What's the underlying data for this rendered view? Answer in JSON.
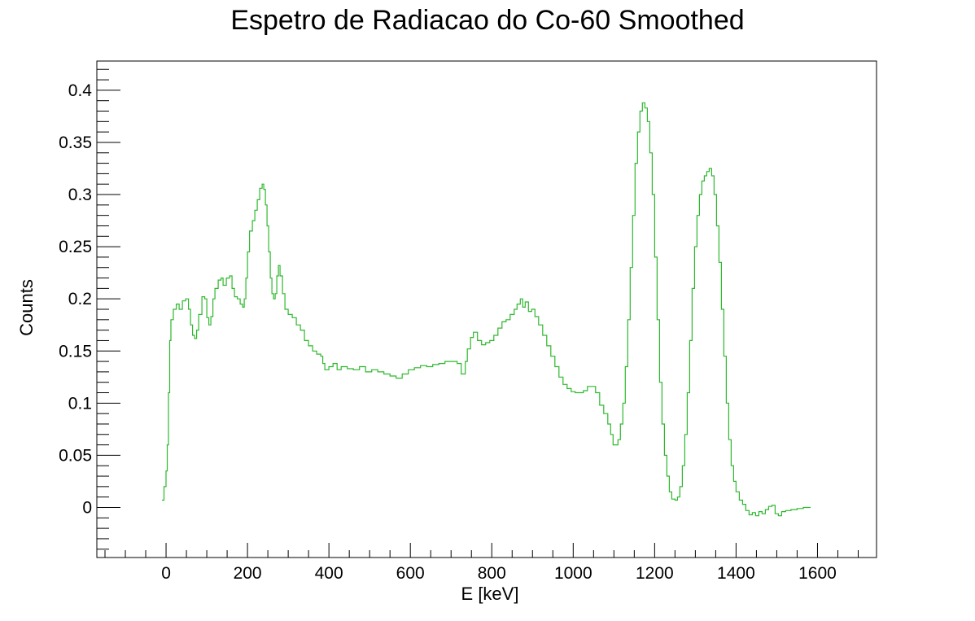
{
  "chart_data": {
    "type": "line",
    "title": "Espetro de Radiacao do Co-60 Smoothed",
    "xlabel": "E [keV]",
    "ylabel": "Counts",
    "xlim": [
      -170,
      1745
    ],
    "ylim": [
      -0.048,
      0.428
    ],
    "xticks": [
      0,
      200,
      400,
      600,
      800,
      1000,
      1200,
      1400,
      1600
    ],
    "xtick_labels": [
      "0",
      "200",
      "400",
      "600",
      "800",
      "1000",
      "1200",
      "1400",
      "1600"
    ],
    "yticks": [
      0,
      0.05,
      0.1,
      0.15,
      0.2,
      0.25,
      0.3,
      0.35,
      0.4
    ],
    "ytick_labels": [
      "0",
      "0.05",
      "0.1",
      "0.15",
      "0.2",
      "0.25",
      "0.3",
      "0.35",
      "0.4"
    ],
    "grid": false,
    "series": [
      {
        "color": "#2db82d",
        "points": [
          [
            -10,
            0.007
          ],
          [
            -5,
            0.02
          ],
          [
            0,
            0.035
          ],
          [
            3,
            0.06
          ],
          [
            6,
            0.11
          ],
          [
            9,
            0.16
          ],
          [
            12,
            0.18
          ],
          [
            18,
            0.19
          ],
          [
            25,
            0.195
          ],
          [
            32,
            0.19
          ],
          [
            40,
            0.198
          ],
          [
            48,
            0.2
          ],
          [
            55,
            0.19
          ],
          [
            60,
            0.175
          ],
          [
            65,
            0.165
          ],
          [
            70,
            0.162
          ],
          [
            75,
            0.17
          ],
          [
            80,
            0.185
          ],
          [
            88,
            0.202
          ],
          [
            95,
            0.2
          ],
          [
            100,
            0.182
          ],
          [
            105,
            0.175
          ],
          [
            110,
            0.183
          ],
          [
            115,
            0.2
          ],
          [
            120,
            0.21
          ],
          [
            128,
            0.218
          ],
          [
            135,
            0.22
          ],
          [
            140,
            0.213
          ],
          [
            148,
            0.22
          ],
          [
            156,
            0.222
          ],
          [
            162,
            0.21
          ],
          [
            168,
            0.202
          ],
          [
            175,
            0.2
          ],
          [
            182,
            0.195
          ],
          [
            188,
            0.192
          ],
          [
            192,
            0.2
          ],
          [
            196,
            0.22
          ],
          [
            200,
            0.245
          ],
          [
            205,
            0.265
          ],
          [
            212,
            0.275
          ],
          [
            218,
            0.285
          ],
          [
            224,
            0.295
          ],
          [
            230,
            0.306
          ],
          [
            236,
            0.31
          ],
          [
            240,
            0.305
          ],
          [
            244,
            0.29
          ],
          [
            248,
            0.27
          ],
          [
            252,
            0.245
          ],
          [
            256,
            0.22
          ],
          [
            260,
            0.205
          ],
          [
            264,
            0.2
          ],
          [
            268,
            0.205
          ],
          [
            272,
            0.222
          ],
          [
            276,
            0.232
          ],
          [
            280,
            0.222
          ],
          [
            286,
            0.205
          ],
          [
            292,
            0.19
          ],
          [
            300,
            0.185
          ],
          [
            310,
            0.182
          ],
          [
            320,
            0.175
          ],
          [
            330,
            0.17
          ],
          [
            340,
            0.16
          ],
          [
            350,
            0.155
          ],
          [
            360,
            0.15
          ],
          [
            370,
            0.147
          ],
          [
            380,
            0.145
          ],
          [
            385,
            0.138
          ],
          [
            390,
            0.132
          ],
          [
            400,
            0.135
          ],
          [
            410,
            0.138
          ],
          [
            420,
            0.132
          ],
          [
            430,
            0.135
          ],
          [
            445,
            0.133
          ],
          [
            460,
            0.132
          ],
          [
            475,
            0.135
          ],
          [
            490,
            0.13
          ],
          [
            505,
            0.132
          ],
          [
            520,
            0.13
          ],
          [
            535,
            0.128
          ],
          [
            550,
            0.126
          ],
          [
            565,
            0.124
          ],
          [
            580,
            0.128
          ],
          [
            595,
            0.132
          ],
          [
            610,
            0.134
          ],
          [
            625,
            0.136
          ],
          [
            640,
            0.135
          ],
          [
            655,
            0.137
          ],
          [
            670,
            0.138
          ],
          [
            685,
            0.14
          ],
          [
            700,
            0.14
          ],
          [
            715,
            0.138
          ],
          [
            725,
            0.128
          ],
          [
            735,
            0.14
          ],
          [
            740,
            0.152
          ],
          [
            748,
            0.163
          ],
          [
            755,
            0.168
          ],
          [
            765,
            0.16
          ],
          [
            775,
            0.156
          ],
          [
            785,
            0.158
          ],
          [
            795,
            0.16
          ],
          [
            805,
            0.165
          ],
          [
            815,
            0.172
          ],
          [
            825,
            0.178
          ],
          [
            835,
            0.18
          ],
          [
            845,
            0.185
          ],
          [
            855,
            0.19
          ],
          [
            862,
            0.195
          ],
          [
            870,
            0.2
          ],
          [
            876,
            0.192
          ],
          [
            882,
            0.197
          ],
          [
            890,
            0.188
          ],
          [
            898,
            0.19
          ],
          [
            906,
            0.183
          ],
          [
            915,
            0.175
          ],
          [
            925,
            0.165
          ],
          [
            935,
            0.155
          ],
          [
            945,
            0.145
          ],
          [
            955,
            0.135
          ],
          [
            965,
            0.125
          ],
          [
            975,
            0.118
          ],
          [
            985,
            0.114
          ],
          [
            995,
            0.111
          ],
          [
            1005,
            0.11
          ],
          [
            1015,
            0.11
          ],
          [
            1025,
            0.112
          ],
          [
            1035,
            0.116
          ],
          [
            1045,
            0.116
          ],
          [
            1055,
            0.11
          ],
          [
            1065,
            0.098
          ],
          [
            1075,
            0.09
          ],
          [
            1085,
            0.08
          ],
          [
            1092,
            0.07
          ],
          [
            1098,
            0.06
          ],
          [
            1105,
            0.06
          ],
          [
            1110,
            0.065
          ],
          [
            1116,
            0.08
          ],
          [
            1122,
            0.1
          ],
          [
            1128,
            0.135
          ],
          [
            1134,
            0.18
          ],
          [
            1140,
            0.23
          ],
          [
            1146,
            0.28
          ],
          [
            1152,
            0.33
          ],
          [
            1158,
            0.36
          ],
          [
            1164,
            0.38
          ],
          [
            1170,
            0.388
          ],
          [
            1176,
            0.383
          ],
          [
            1182,
            0.37
          ],
          [
            1188,
            0.34
          ],
          [
            1194,
            0.3
          ],
          [
            1200,
            0.24
          ],
          [
            1206,
            0.18
          ],
          [
            1212,
            0.12
          ],
          [
            1218,
            0.08
          ],
          [
            1224,
            0.05
          ],
          [
            1230,
            0.03
          ],
          [
            1236,
            0.015
          ],
          [
            1242,
            0.008
          ],
          [
            1250,
            0.007
          ],
          [
            1256,
            0.01
          ],
          [
            1262,
            0.02
          ],
          [
            1268,
            0.04
          ],
          [
            1274,
            0.07
          ],
          [
            1280,
            0.11
          ],
          [
            1286,
            0.16
          ],
          [
            1292,
            0.21
          ],
          [
            1298,
            0.25
          ],
          [
            1304,
            0.28
          ],
          [
            1310,
            0.3
          ],
          [
            1316,
            0.313
          ],
          [
            1322,
            0.318
          ],
          [
            1328,
            0.322
          ],
          [
            1334,
            0.325
          ],
          [
            1340,
            0.318
          ],
          [
            1346,
            0.3
          ],
          [
            1352,
            0.27
          ],
          [
            1358,
            0.235
          ],
          [
            1364,
            0.19
          ],
          [
            1370,
            0.145
          ],
          [
            1376,
            0.1
          ],
          [
            1382,
            0.065
          ],
          [
            1388,
            0.04
          ],
          [
            1394,
            0.025
          ],
          [
            1400,
            0.015
          ],
          [
            1408,
            0.007
          ],
          [
            1416,
            0.003
          ],
          [
            1424,
            -0.003
          ],
          [
            1432,
            -0.007
          ],
          [
            1440,
            -0.005
          ],
          [
            1448,
            -0.008
          ],
          [
            1456,
            -0.004
          ],
          [
            1464,
            -0.006
          ],
          [
            1472,
            -0.002
          ],
          [
            1480,
            0.001
          ],
          [
            1488,
            0.002
          ],
          [
            1496,
            -0.006
          ],
          [
            1504,
            -0.008
          ],
          [
            1512,
            -0.004
          ],
          [
            1522,
            -0.003
          ],
          [
            1535,
            -0.002
          ],
          [
            1550,
            -0.001
          ],
          [
            1565,
            0.0
          ],
          [
            1583,
            0.0
          ]
        ]
      }
    ]
  }
}
